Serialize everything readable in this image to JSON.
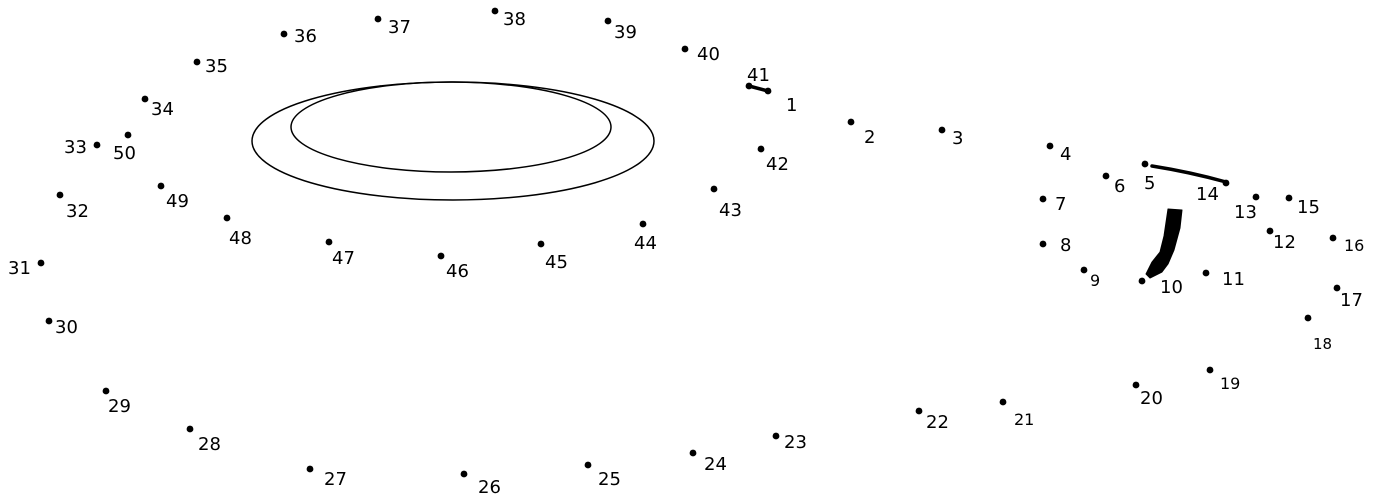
{
  "colors": {
    "ink": "#000000",
    "background": "#ffffff"
  },
  "points": [
    {
      "label": "1"
    },
    {
      "label": "2"
    },
    {
      "label": "3"
    },
    {
      "label": "4"
    },
    {
      "label": "5"
    },
    {
      "label": "6"
    },
    {
      "label": "7"
    },
    {
      "label": "8"
    },
    {
      "label": "9"
    },
    {
      "label": "10"
    },
    {
      "label": "11"
    },
    {
      "label": "12"
    },
    {
      "label": "13"
    },
    {
      "label": "14"
    },
    {
      "label": "15"
    },
    {
      "label": "16"
    },
    {
      "label": "17"
    },
    {
      "label": "18"
    },
    {
      "label": "19"
    },
    {
      "label": "20"
    },
    {
      "label": "21"
    },
    {
      "label": "22"
    },
    {
      "label": "23"
    },
    {
      "label": "24"
    },
    {
      "label": "25"
    },
    {
      "label": "26"
    },
    {
      "label": "27"
    },
    {
      "label": "28"
    },
    {
      "label": "29"
    },
    {
      "label": "30"
    },
    {
      "label": "31"
    },
    {
      "label": "32"
    },
    {
      "label": "33"
    },
    {
      "label": "34"
    },
    {
      "label": "35"
    },
    {
      "label": "36"
    },
    {
      "label": "37"
    },
    {
      "label": "38"
    },
    {
      "label": "39"
    },
    {
      "label": "40"
    },
    {
      "label": "41"
    },
    {
      "label": "42"
    },
    {
      "label": "43"
    },
    {
      "label": "44"
    },
    {
      "label": "45"
    },
    {
      "label": "46"
    },
    {
      "label": "47"
    },
    {
      "label": "48"
    },
    {
      "label": "49"
    },
    {
      "label": "50"
    }
  ]
}
